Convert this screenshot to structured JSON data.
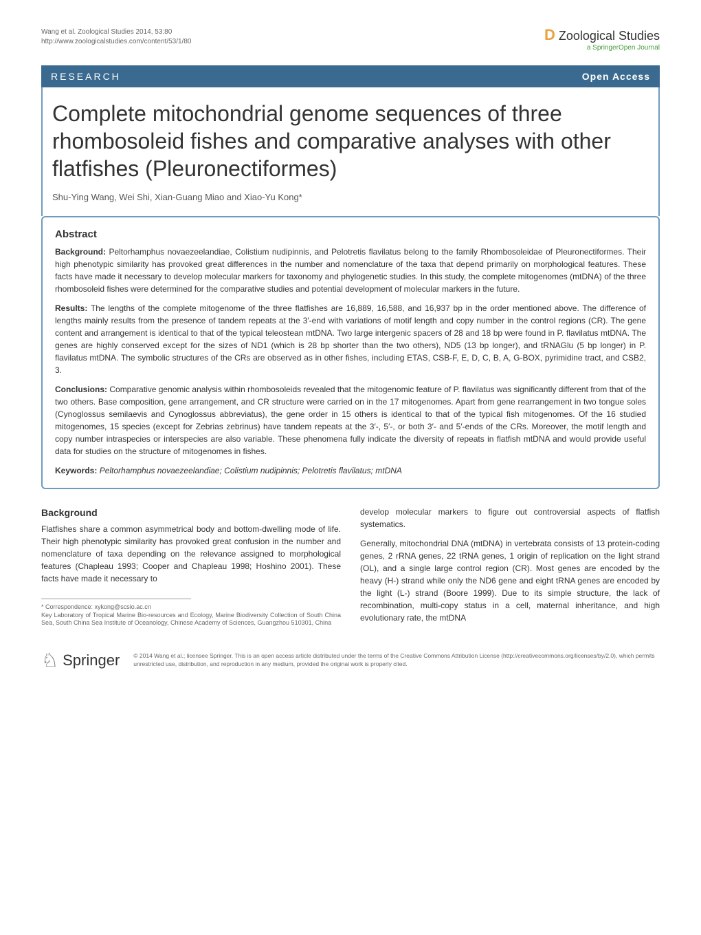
{
  "header": {
    "citation_line1": "Wang et al. Zoological Studies 2014, 53:80",
    "citation_line2": "http://www.zoologicalstudies.com/content/53/1/80",
    "journal_name_prefix": "D",
    "journal_name": " Zoological Studies",
    "journal_subtitle": "a SpringerOpen Journal"
  },
  "banner": {
    "article_type": "RESEARCH",
    "access": "Open Access"
  },
  "title": "Complete mitochondrial genome sequences of three rhombosoleid fishes and comparative analyses with other flatfishes (Pleuronectiformes)",
  "authors": "Shu-Ying Wang, Wei Shi, Xian-Guang Miao and Xiao-Yu Kong*",
  "abstract": {
    "heading": "Abstract",
    "background_label": "Background:",
    "background_text": " Peltorhamphus novaezeelandiae, Colistium nudipinnis, and Pelotretis flavilatus belong to the family Rhombosoleidae of Pleuronectiformes. Their high phenotypic similarity has provoked great differences in the number and nomenclature of the taxa that depend primarily on morphological features. These facts have made it necessary to develop molecular markers for taxonomy and phylogenetic studies. In this study, the complete mitogenomes (mtDNA) of the three rhombosoleid fishes were determined for the comparative studies and potential development of molecular markers in the future.",
    "results_label": "Results:",
    "results_text": " The lengths of the complete mitogenome of the three flatfishes are 16,889, 16,588, and 16,937 bp in the order mentioned above. The difference of lengths mainly results from the presence of tandem repeats at the 3′-end with variations of motif length and copy number in the control regions (CR). The gene content and arrangement is identical to that of the typical teleostean mtDNA. Two large intergenic spacers of 28 and 18 bp were found in P. flavilatus mtDNA. The genes are highly conserved except for the sizes of ND1 (which is 28 bp shorter than the two others), ND5 (13 bp longer), and tRNAGlu (5 bp longer) in P. flavilatus mtDNA. The symbolic structures of the CRs are observed as in other fishes, including ETAS, CSB-F, E, D, C, B, A, G-BOX, pyrimidine tract, and CSB2, 3.",
    "conclusions_label": "Conclusions:",
    "conclusions_text": " Comparative genomic analysis within rhombosoleids revealed that the mitogenomic feature of P. flavilatus was significantly different from that of the two others. Base composition, gene arrangement, and CR structure were carried on in the 17 mitogenomes. Apart from gene rearrangement in two tongue soles (Cynoglossus semilaevis and Cynoglossus abbreviatus), the gene order in 15 others is identical to that of the typical fish mitogenomes. Of the 16 studied mitogenomes, 15 species (except for Zebrias zebrinus) have tandem repeats at the 3′-, 5′-, or both 3′- and 5′-ends of the CRs. Moreover, the motif length and copy number intraspecies or interspecies are also variable. These phenomena fully indicate the diversity of repeats in flatfish mtDNA and would provide useful data for studies on the structure of mitogenomes in fishes.",
    "keywords_label": "Keywords:",
    "keywords_text": " Peltorhamphus novaezeelandiae; Colistium nudipinnis; Pelotretis flavilatus; mtDNA"
  },
  "body": {
    "left": {
      "section_heading": "Background",
      "para1": "Flatfishes share a common asymmetrical body and bottom-dwelling mode of life. Their high phenotypic similarity has provoked great confusion in the number and nomenclature of taxa depending on the relevance assigned to morphological features (Chapleau 1993; Cooper and Chapleau 1998; Hoshino 2001). These facts have made it necessary to",
      "footnote_correspondence": "* Correspondence: xykong@scsio.ac.cn",
      "footnote_affiliation": "Key Laboratory of Tropical Marine Bio-resources and Ecology, Marine Biodiversity Collection of South China Sea, South China Sea Institute of Oceanology, Chinese Academy of Sciences, Guangzhou 510301, China"
    },
    "right": {
      "para1": "develop molecular markers to figure out controversial aspects of flatfish systematics.",
      "para2": "Generally, mitochondrial DNA (mtDNA) in vertebrata consists of 13 protein-coding genes, 2 rRNA genes, 22 tRNA genes, 1 origin of replication on the light strand (OL), and a single large control region (CR). Most genes are encoded by the heavy (H-) strand while only the ND6 gene and eight tRNA genes are encoded by the light (L-) strand (Boore 1999). Due to its simple structure, the lack of recombination, multi-copy status in a cell, maternal inheritance, and high evolutionary rate, the mtDNA"
    }
  },
  "footer": {
    "publisher": "Springer",
    "license": "© 2014 Wang et al.; licensee Springer. This is an open access article distributed under the terms of the Creative Commons Attribution License (http://creativecommons.org/licenses/by/2.0), which permits unrestricted use, distribution, and reproduction in any medium, provided the original work is properly cited."
  },
  "colors": {
    "banner_bg": "#3a6a8f",
    "border": "#6f9bbc",
    "orange": "#e8a33d",
    "green": "#4a9b3e",
    "text": "#333333",
    "muted": "#666666"
  },
  "typography": {
    "title_fontsize": 32,
    "body_fontsize": 12,
    "footnote_fontsize": 9
  }
}
